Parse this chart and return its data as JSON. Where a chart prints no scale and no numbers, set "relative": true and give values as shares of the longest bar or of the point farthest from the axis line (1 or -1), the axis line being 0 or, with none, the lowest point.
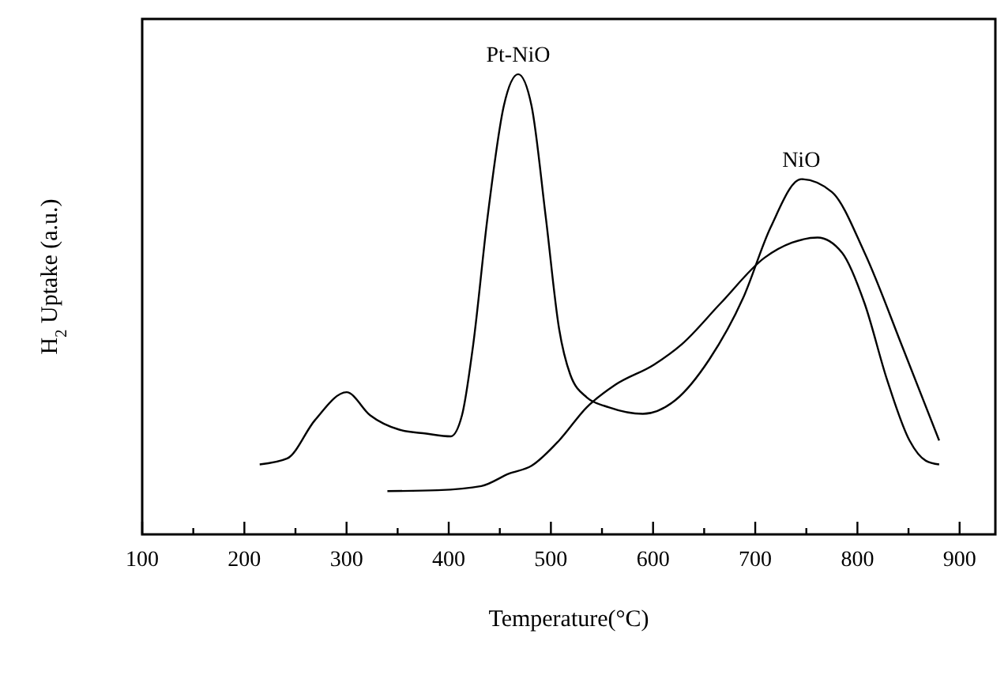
{
  "chart_data": {
    "type": "line",
    "relative": true,
    "xlabel": "Temperature(°C)",
    "ylabel": "H$_{2}$ Uptake (a.u.)",
    "xlim": [
      100,
      935
    ],
    "xticks": [
      100,
      {
        "value": 150,
        "label": null
      },
      200,
      {
        "value": 250,
        "label": null
      },
      300,
      {
        "value": 350,
        "label": null
      },
      400,
      {
        "value": 450,
        "label": null
      },
      500,
      {
        "value": 550,
        "label": null
      },
      600,
      {
        "value": 650,
        "label": null
      },
      700,
      {
        "value": 750,
        "label": null
      },
      800,
      {
        "value": 850,
        "label": null
      },
      900
    ],
    "grid": false,
    "marker": "none",
    "line_style": "solid",
    "annotations": [
      {
        "text": "Pt-NiO",
        "x": 468,
        "y": 1.0
      },
      {
        "text": "NiO",
        "x": 745,
        "y": 0.772
      }
    ],
    "series": [
      {
        "color": "#000000",
        "x": [
          215,
          242,
          269,
          300,
          323,
          351,
          378,
          402,
          413,
          424,
          438,
          454,
          468,
          481,
          495,
          508,
          519,
          535,
          557,
          590,
          622,
          655,
          688,
          715,
          745,
          775,
          807,
          845,
          880
        ],
        "values": [
          0.152,
          0.165,
          0.248,
          0.309,
          0.259,
          0.228,
          0.219,
          0.213,
          0.259,
          0.413,
          0.689,
          0.932,
          1.0,
          0.932,
          0.689,
          0.447,
          0.347,
          0.298,
          0.276,
          0.262,
          0.292,
          0.38,
          0.513,
          0.667,
          0.772,
          0.744,
          0.612,
          0.402,
          0.204
        ]
      },
      {
        "color": "#000000",
        "x": [
          340,
          389,
          432,
          459,
          481,
          508,
          535,
          563,
          601,
          628,
          666,
          709,
          736,
          761,
          785,
          807,
          829,
          851,
          867,
          880
        ],
        "values": [
          0.094,
          0.096,
          0.105,
          0.132,
          0.149,
          0.204,
          0.276,
          0.325,
          0.369,
          0.413,
          0.502,
          0.601,
          0.634,
          0.645,
          0.612,
          0.502,
          0.336,
          0.204,
          0.16,
          0.152
        ]
      }
    ]
  }
}
